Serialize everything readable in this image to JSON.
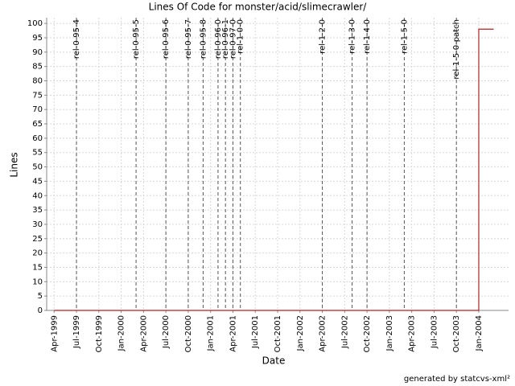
{
  "chart_data": {
    "type": "line",
    "title": "Lines Of Code for monster/acid/slimecrawler/",
    "x_label": "Date",
    "y_label": "Lines",
    "footer": "generated by statcvs-xml²",
    "x": [
      "1999-04",
      "2004-01",
      "2004-01",
      "2004-03"
    ],
    "values": [
      0,
      0,
      98,
      98
    ],
    "color": "#b22222",
    "xlim": [
      "1999-03",
      "2004-05"
    ],
    "xticks": [
      {
        "value": "1999-04",
        "label": "Apr-1999"
      },
      {
        "value": "1999-07",
        "label": "Jul-1999"
      },
      {
        "value": "1999-10",
        "label": "Oct-1999"
      },
      {
        "value": "2000-01",
        "label": "Jan-2000"
      },
      {
        "value": "2000-04",
        "label": "Apr-2000"
      },
      {
        "value": "2000-07",
        "label": "Jul-2000"
      },
      {
        "value": "2000-10",
        "label": "Oct-2000"
      },
      {
        "value": "2001-01",
        "label": "Jan-2001"
      },
      {
        "value": "2001-04",
        "label": "Apr-2001"
      },
      {
        "value": "2001-07",
        "label": "Jul-2001"
      },
      {
        "value": "2001-10",
        "label": "Oct-2001"
      },
      {
        "value": "2002-01",
        "label": "Jan-2002"
      },
      {
        "value": "2002-04",
        "label": "Apr-2002"
      },
      {
        "value": "2002-07",
        "label": "Jul-2002"
      },
      {
        "value": "2002-10",
        "label": "Oct-2002"
      },
      {
        "value": "2003-01",
        "label": "Jan-2003"
      },
      {
        "value": "2003-04",
        "label": "Apr-2003"
      },
      {
        "value": "2003-07",
        "label": "Jul-2003"
      },
      {
        "value": "2003-10",
        "label": "Oct-2003"
      },
      {
        "value": "2004-01",
        "label": "Jan-2004"
      }
    ],
    "ylim": [
      0,
      102
    ],
    "yticks": [
      0,
      5,
      10,
      15,
      20,
      25,
      30,
      35,
      40,
      45,
      50,
      55,
      60,
      65,
      70,
      75,
      80,
      85,
      90,
      95,
      100
    ],
    "grid": true,
    "markers": [
      {
        "label": "rel-0-95-4",
        "x": "1999-07"
      },
      {
        "label": "rel-0-95-5",
        "x": "2000-03"
      },
      {
        "label": "rel-0-95-6",
        "x": "2000-07"
      },
      {
        "label": "rel-0-95-7",
        "x": "2000-10"
      },
      {
        "label": "rel-0-95-8",
        "x": "2000-12"
      },
      {
        "label": "rel-0-96-0",
        "x": "2001-02"
      },
      {
        "label": "rel-0-96-1",
        "x": "2001-03"
      },
      {
        "label": "rel-0-97-0",
        "x": "2001-04"
      },
      {
        "label": "rel-1-0-0",
        "x": "2001-05"
      },
      {
        "label": "rel-1-2-0",
        "x": "2002-04"
      },
      {
        "label": "rel-1-3-0",
        "x": "2002-08"
      },
      {
        "label": "rel-1-4-0",
        "x": "2002-10"
      },
      {
        "label": "rel-1-5-0",
        "x": "2003-03"
      },
      {
        "label": "rel-1-5-0-patch",
        "x": "2003-10"
      }
    ]
  }
}
